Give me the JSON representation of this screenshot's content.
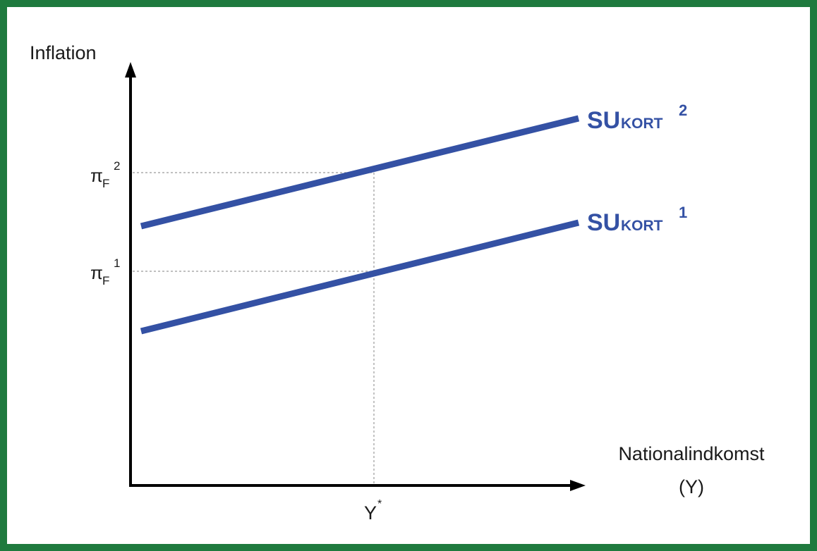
{
  "colors": {
    "border": "#1f7a3e",
    "curve": "#3451a4",
    "axis": "#000000",
    "guide": "#9a9a9a",
    "text": "#1a1a1a"
  },
  "axes": {
    "y_label": "Inflation",
    "x_label_line1": "Nationalindkomst",
    "x_label_line2": "(Y)",
    "x_mark": {
      "base": "Y",
      "sup": "*"
    },
    "y_marks": [
      {
        "base": "π",
        "sub": "F",
        "sup": "1"
      },
      {
        "base": "π",
        "sub": "F",
        "sup": "2"
      }
    ]
  },
  "curves": [
    {
      "label": {
        "base": "SU",
        "sub": "KORT",
        "sup": "1"
      }
    },
    {
      "label": {
        "base": "SU",
        "sub": "KORT",
        "sup": "2"
      }
    }
  ]
}
